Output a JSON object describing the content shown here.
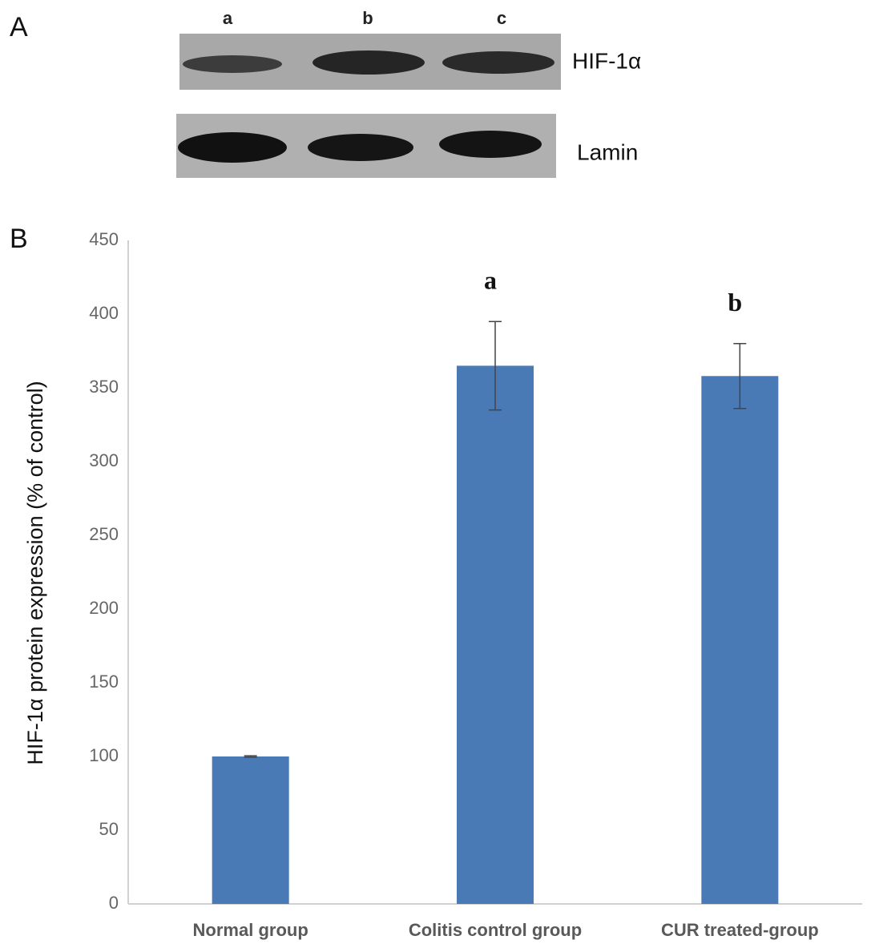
{
  "panels": [
    "A",
    "B"
  ],
  "blot": {
    "lanes": [
      "a",
      "b",
      "c"
    ],
    "bands": [
      "HIF-1α",
      "Lamin"
    ]
  },
  "chart_data": {
    "type": "bar",
    "y_label": "HIF-1α protein expression (% of control)",
    "categories": [
      "Normal group",
      "Colitis control group",
      "CUR treated-group"
    ],
    "values": [
      100,
      365,
      358
    ],
    "errors": [
      0.5,
      30,
      22
    ],
    "significance_labels": [
      null,
      "a",
      "b"
    ],
    "color": "#4a7ab5",
    "ylim": [
      0,
      450
    ],
    "yticks": [
      0,
      50,
      100,
      150,
      200,
      250,
      300,
      350,
      400,
      450
    ],
    "grid": false
  }
}
